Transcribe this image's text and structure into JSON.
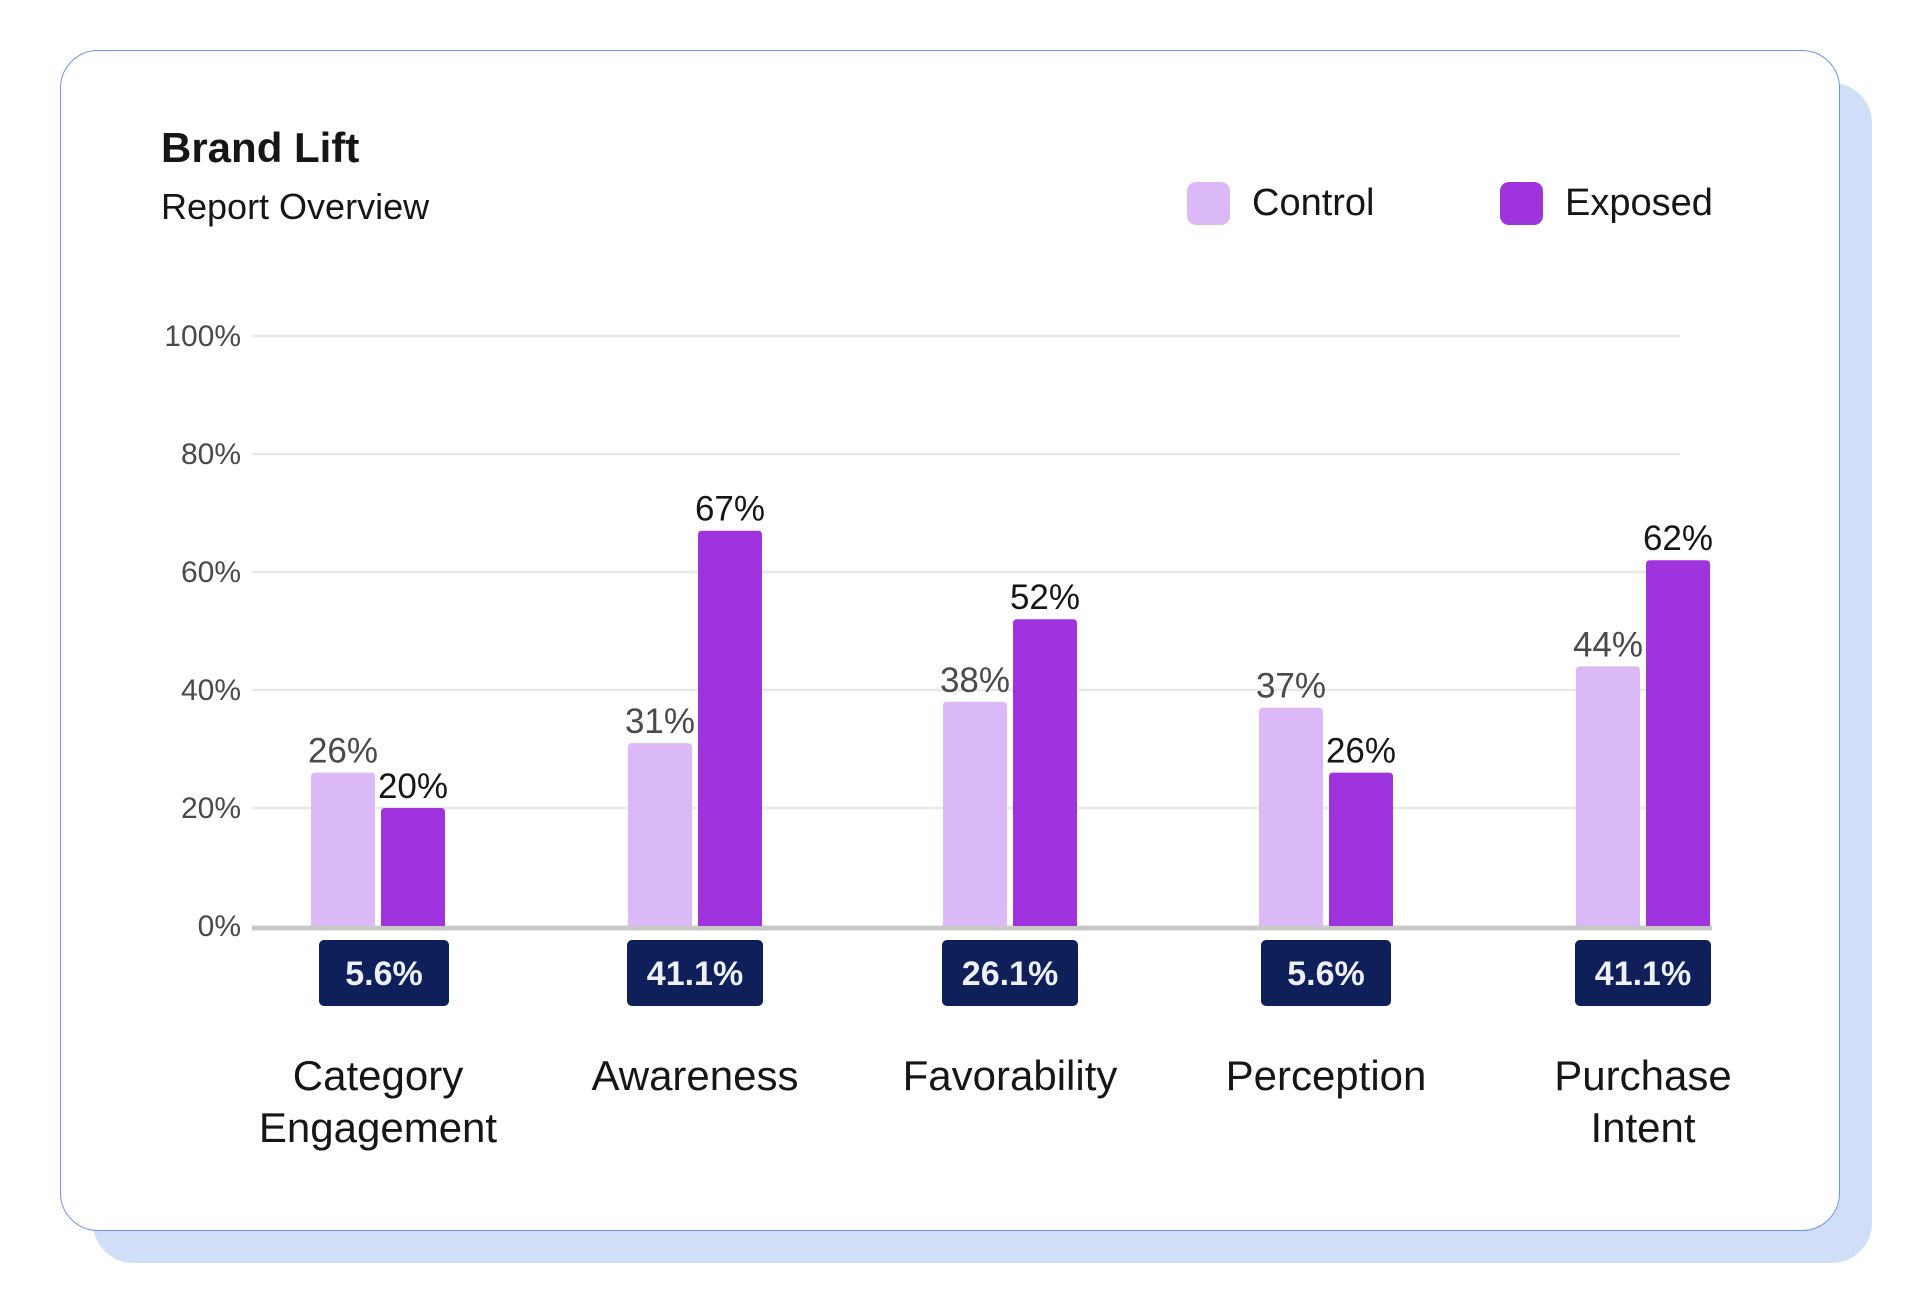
{
  "header": {
    "title": "Brand Lift",
    "subtitle": "Report Overview"
  },
  "legend": [
    {
      "label": "Control",
      "color": "#dbb9f6"
    },
    {
      "label": "Exposed",
      "color": "#9f33de"
    }
  ],
  "chart_data": {
    "type": "bar",
    "title": "Brand Lift",
    "subtitle": "Report Overview",
    "categories": [
      [
        "Category",
        "Engagement"
      ],
      [
        "Awareness"
      ],
      [
        "Favorability"
      ],
      [
        "Perception"
      ],
      [
        "Purchase",
        "Intent"
      ]
    ],
    "series": [
      {
        "name": "Control",
        "values": [
          26,
          31,
          38,
          37,
          44
        ],
        "labels": [
          "26%",
          "31%",
          "38%",
          "37%",
          "44%"
        ],
        "color": "#dbb9f6"
      },
      {
        "name": "Exposed",
        "values": [
          20,
          67,
          52,
          26,
          62
        ],
        "labels": [
          "20%",
          "67%",
          "52%",
          "26%",
          "62%"
        ],
        "color": "#9f33de"
      }
    ],
    "lift": [
      "5.6%",
      "41.1%",
      "26.1%",
      "5.6%",
      "41.1%"
    ],
    "lift_badge_color": "#0e1f5a",
    "yticks": [
      "0%",
      "20%",
      "40%",
      "60%",
      "80%",
      "100%"
    ],
    "ylim": [
      0,
      100
    ],
    "grid": true,
    "legend_position": "top-right"
  }
}
